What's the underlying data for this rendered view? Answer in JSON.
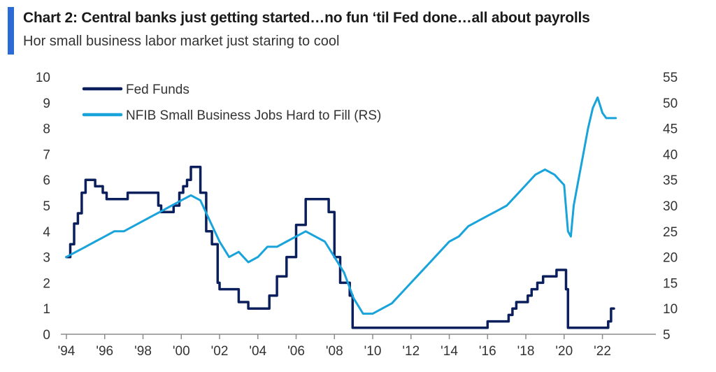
{
  "header": {
    "title": "Chart 2: Central banks just getting started…no fun ‘til Fed done…all about payrolls",
    "subtitle": "Hor small business labor market just staring to cool",
    "accent_color": "#2c6bd6"
  },
  "chart_data": {
    "type": "line",
    "title": "Chart 2: Central banks just getting started…no fun ‘til Fed done…all about payrolls",
    "subtitle": "Hor small business labor market just staring to cool",
    "x_ticks": [
      "'94",
      "'96",
      "'98",
      "'00",
      "'02",
      "'04",
      "'06",
      "'08",
      "'10",
      "'12",
      "'14",
      "'16",
      "'18",
      "'20",
      "'22"
    ],
    "x_tick_years": [
      1994,
      1996,
      1998,
      2000,
      2002,
      2004,
      2006,
      2008,
      2010,
      2012,
      2014,
      2016,
      2018,
      2020,
      2022
    ],
    "xlim": [
      1994,
      2024.5
    ],
    "y_left": {
      "ticks": [
        0,
        1,
        2,
        3,
        4,
        5,
        6,
        7,
        8,
        9,
        10
      ],
      "ylim": [
        0,
        10
      ]
    },
    "y_right": {
      "ticks": [
        5,
        10,
        15,
        20,
        25,
        30,
        35,
        40,
        45,
        50,
        55
      ],
      "ylim": [
        5,
        55
      ]
    },
    "grid": false,
    "legend_position": "top-left",
    "series": [
      {
        "name": "Fed Funds",
        "axis": "left",
        "color": "#0b1f5c",
        "x": [
          1994.0,
          1994.2,
          1994.4,
          1994.6,
          1994.8,
          1995.0,
          1995.1,
          1995.5,
          1995.6,
          1995.9,
          1996.1,
          1997.0,
          1997.2,
          1998.7,
          1998.8,
          1998.95,
          1999.4,
          1999.6,
          1999.9,
          2000.1,
          2000.3,
          2000.5,
          2000.9,
          2001.0,
          2001.3,
          2001.6,
          2001.9,
          2002.0,
          2002.85,
          2003.0,
          2003.5,
          2004.4,
          2004.6,
          2005.0,
          2005.5,
          2006.0,
          2006.5,
          2007.5,
          2007.7,
          2008.0,
          2008.3,
          2008.8,
          2008.95,
          2015.9,
          2016.0,
          2016.9,
          2017.1,
          2017.3,
          2017.5,
          2017.9,
          2018.1,
          2018.3,
          2018.6,
          2018.9,
          2019.6,
          2019.9,
          2020.1,
          2020.2,
          2022.1,
          2022.3,
          2022.45,
          2022.6
        ],
        "values": [
          3.0,
          3.5,
          4.3,
          4.7,
          5.5,
          6.0,
          6.0,
          5.75,
          5.75,
          5.5,
          5.25,
          5.25,
          5.5,
          5.5,
          5.0,
          4.75,
          4.75,
          5.0,
          5.5,
          5.75,
          6.0,
          6.5,
          6.5,
          5.5,
          4.0,
          3.5,
          2.0,
          1.75,
          1.75,
          1.25,
          1.0,
          1.0,
          1.5,
          2.25,
          3.0,
          4.25,
          5.25,
          5.25,
          4.75,
          3.0,
          2.0,
          1.5,
          0.25,
          0.25,
          0.5,
          0.5,
          0.75,
          1.0,
          1.25,
          1.25,
          1.5,
          1.75,
          2.0,
          2.25,
          2.5,
          2.5,
          1.75,
          0.25,
          0.25,
          0.5,
          1.0,
          1.0
        ]
      },
      {
        "name": "NFIB Small Business Jobs Hard to Fill (RS)",
        "axis": "right",
        "color": "#18a3db",
        "x": [
          1994.0,
          1994.5,
          1995.0,
          1995.5,
          1996.0,
          1996.5,
          1997.0,
          1997.5,
          1998.0,
          1998.5,
          1999.0,
          1999.5,
          2000.0,
          2000.5,
          2001.0,
          2001.5,
          2002.0,
          2002.5,
          2003.0,
          2003.5,
          2004.0,
          2004.5,
          2005.0,
          2005.5,
          2006.0,
          2006.5,
          2007.0,
          2007.5,
          2008.0,
          2008.5,
          2009.0,
          2009.5,
          2010.0,
          2010.5,
          2011.0,
          2011.5,
          2012.0,
          2012.5,
          2013.0,
          2013.5,
          2014.0,
          2014.5,
          2015.0,
          2015.5,
          2016.0,
          2016.5,
          2017.0,
          2017.5,
          2018.0,
          2018.5,
          2019.0,
          2019.5,
          2020.0,
          2020.2,
          2020.35,
          2020.5,
          2020.75,
          2021.0,
          2021.25,
          2021.5,
          2021.75,
          2022.0,
          2022.2,
          2022.4,
          2022.7
        ],
        "values": [
          20,
          21,
          22,
          23,
          24,
          25,
          25,
          26,
          27,
          28,
          29,
          30,
          31,
          32,
          31,
          27,
          23,
          20,
          21,
          19,
          20,
          22,
          22,
          23,
          24,
          25,
          24,
          23,
          20,
          17,
          12,
          9,
          9,
          10,
          11,
          13,
          15,
          17,
          19,
          21,
          23,
          24,
          26,
          27,
          28,
          29,
          30,
          32,
          34,
          36,
          37,
          36,
          34,
          25,
          24,
          30,
          35,
          40,
          45,
          49,
          51,
          48,
          47,
          47,
          47
        ]
      }
    ]
  }
}
